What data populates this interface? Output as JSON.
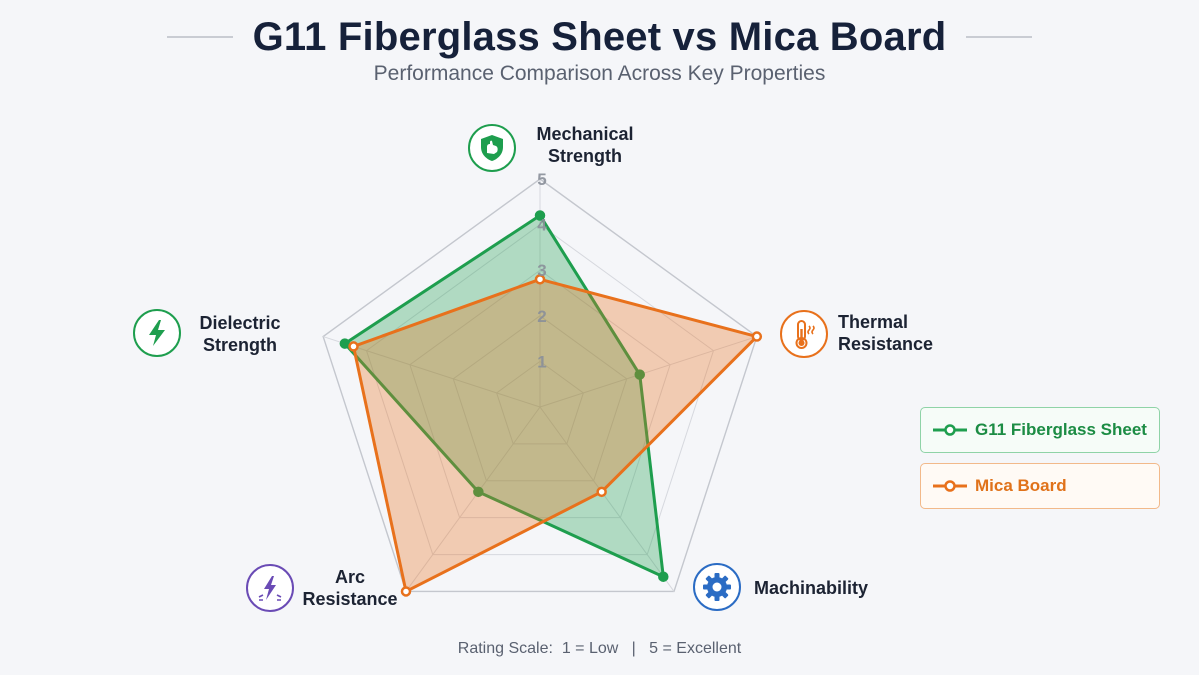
{
  "title": "G11 Fiberglass Sheet vs Mica Board",
  "subtitle": "Performance Comparison Across Key Properties",
  "scale_note": {
    "low": "Rating Scale:  1 = Low",
    "separator": "|",
    "high": "5 = Excellent"
  },
  "axes": [
    {
      "line1": "Mechanical",
      "line2": "Strength",
      "icon": "shield-flexed-arm-icon",
      "color": "#1e9e4e"
    },
    {
      "line1": "Thermal",
      "line2": "Resistance",
      "icon": "thermometer-icon",
      "color": "#e8711c"
    },
    {
      "line1": "Machinability",
      "line2": "",
      "icon": "gear-icon",
      "color": "#2b6cc4"
    },
    {
      "line1": "Arc",
      "line2": "Resistance",
      "icon": "arc-lightning-icon",
      "color": "#6a4bb5"
    },
    {
      "line1": "Dielectric",
      "line2": "Strength",
      "icon": "lightning-bolt-icon",
      "color": "#1e9e4e"
    }
  ],
  "legend": [
    {
      "label": "G11 Fiberglass Sheet",
      "color": "#1e9e4e"
    },
    {
      "label": "Mica Board",
      "color": "#e8711c"
    }
  ],
  "chart_data": {
    "type": "radar",
    "title": "G11 Fiberglass Sheet vs Mica Board",
    "subtitle": "Performance Comparison Across Key Properties",
    "categories": [
      "Mechanical Strength",
      "Thermal Resistance",
      "Machinability",
      "Arc Resistance",
      "Dielectric Strength"
    ],
    "ticks": [
      "1",
      "2",
      "3",
      "4",
      "5"
    ],
    "range": [
      0,
      5
    ],
    "grid": true,
    "legend_position": "right",
    "series": [
      {
        "name": "G11 Fiberglass Sheet",
        "color": "#1e9e4e",
        "values": [
          4.2,
          2.3,
          4.6,
          2.3,
          4.5
        ]
      },
      {
        "name": "Mica Board",
        "color": "#e8711c",
        "values": [
          2.8,
          5.0,
          2.3,
          5.0,
          4.3
        ]
      }
    ]
  }
}
